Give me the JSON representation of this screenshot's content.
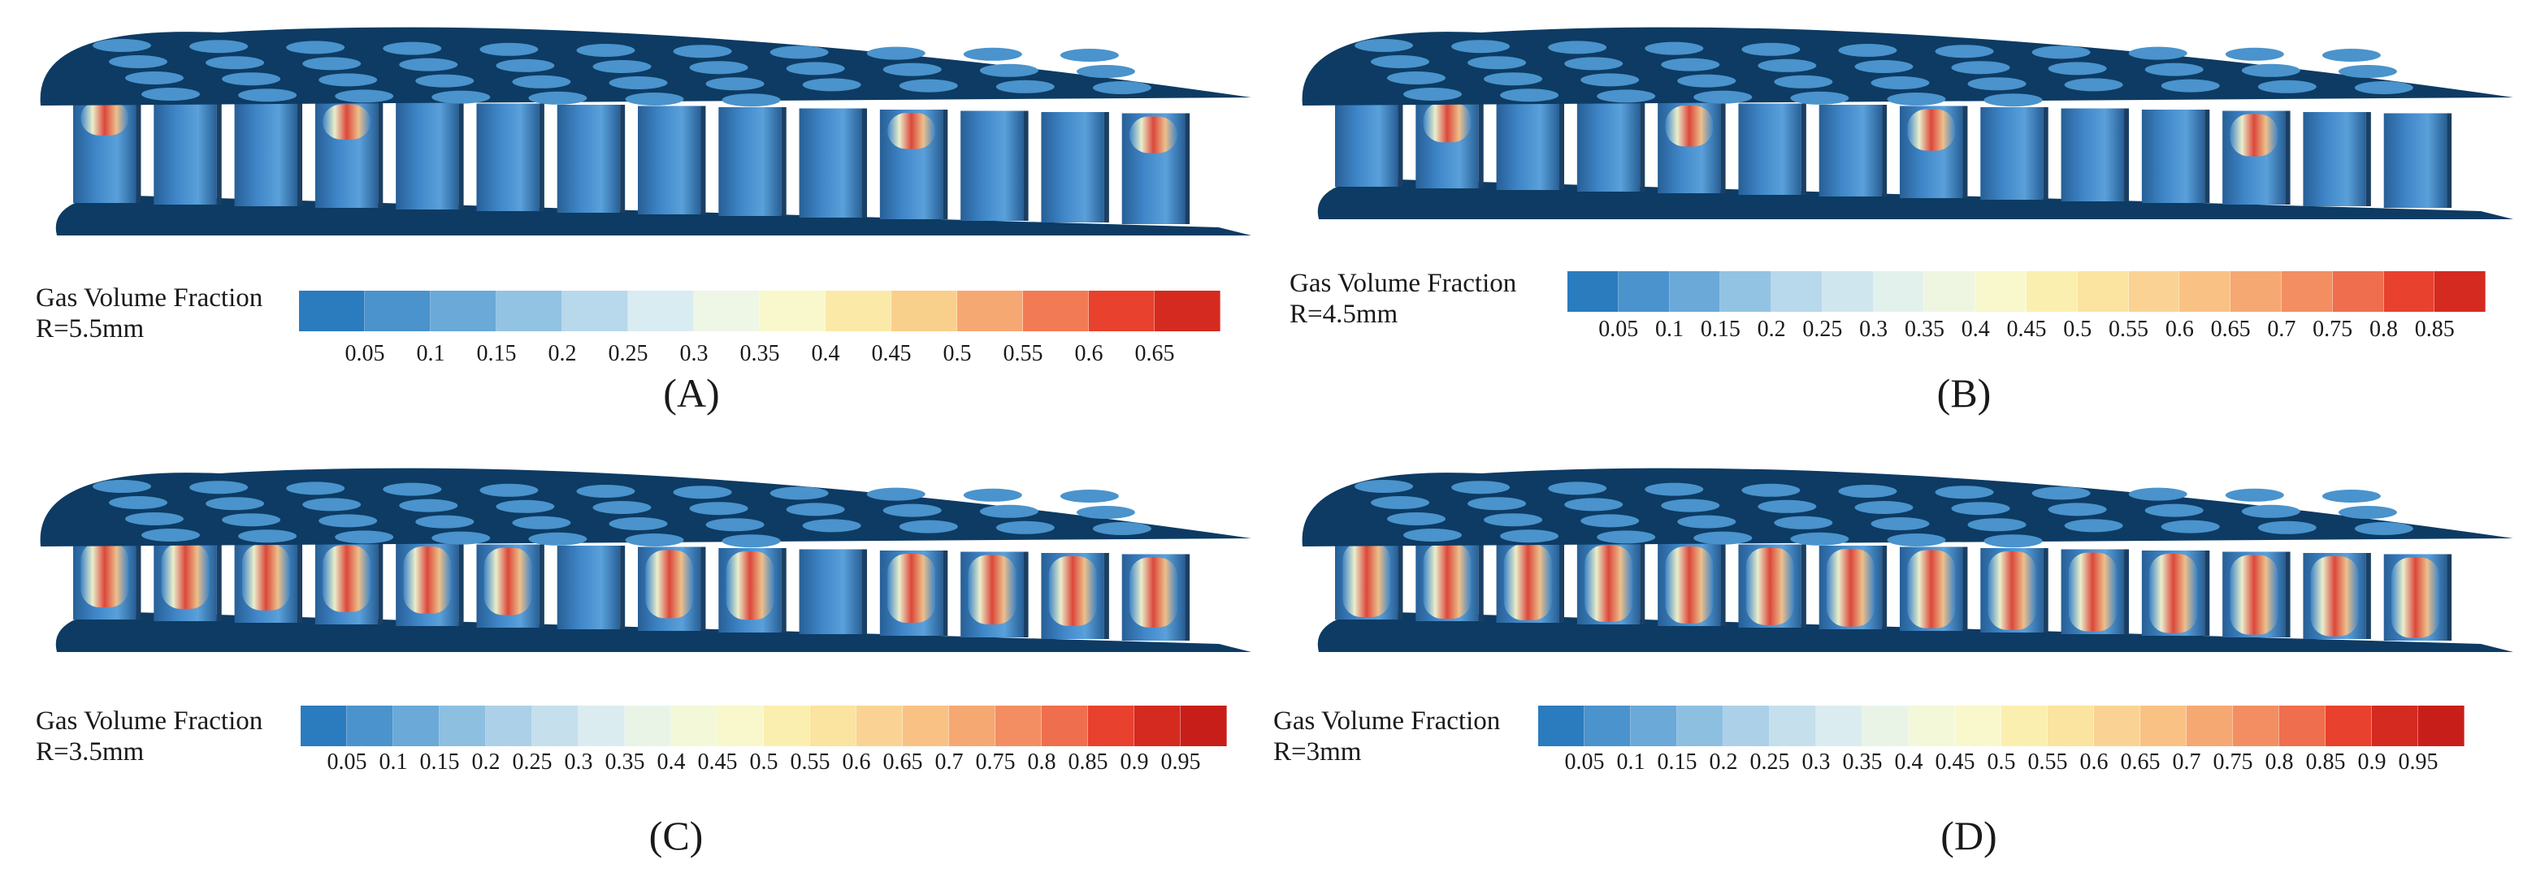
{
  "panels": [
    {
      "id": "A",
      "label": "(A)",
      "legend_title": "Gas Volume Fraction",
      "radius_label": "R=5.5mm",
      "ticks": [
        "0.05",
        "0.1",
        "0.15",
        "0.2",
        "0.25",
        "0.3",
        "0.35",
        "0.4",
        "0.45",
        "0.5",
        "0.55",
        "0.6",
        "0.65"
      ],
      "gas_level": 0.1,
      "colors": [
        "#2b7bbf",
        "#4a93cc",
        "#6aa9d8",
        "#93c3e3",
        "#b8d8ec",
        "#d9ecf1",
        "#eef6e6",
        "#f9f8cc",
        "#fbe9a8",
        "#f9cf8c",
        "#f6a873",
        "#f27a55",
        "#e8412d",
        "#d42a1f"
      ]
    },
    {
      "id": "B",
      "label": "(B)",
      "legend_title": "Gas Volume Fraction",
      "radius_label": "R=4.5mm",
      "ticks": [
        "0.05",
        "0.1",
        "0.15",
        "0.2",
        "0.25",
        "0.3",
        "0.35",
        "0.4",
        "0.45",
        "0.5",
        "0.55",
        "0.6",
        "0.65",
        "0.7",
        "0.75",
        "0.8",
        "0.85"
      ],
      "gas_level": 0.25,
      "colors": [
        "#2b7bbf",
        "#4a93cc",
        "#6aa9d8",
        "#93c3e3",
        "#b8d8ec",
        "#d0e6ef",
        "#e3f1ec",
        "#eef6e2",
        "#f9f8cc",
        "#fbefb0",
        "#fbe3a0",
        "#fad394",
        "#f9c284",
        "#f6a873",
        "#f38e62",
        "#ef6e4d",
        "#e8412d",
        "#d42a1f"
      ]
    },
    {
      "id": "C",
      "label": "(C)",
      "legend_title": "Gas Volume Fraction",
      "radius_label": "R=3.5mm",
      "ticks": [
        "0.05",
        "0.1",
        "0.15",
        "0.2",
        "0.25",
        "0.3",
        "0.35",
        "0.4",
        "0.45",
        "0.5",
        "0.55",
        "0.6",
        "0.65",
        "0.7",
        "0.75",
        "0.8",
        "0.85",
        "0.9",
        "0.95"
      ],
      "gas_level": 0.7,
      "colors": [
        "#2b7bbf",
        "#4a93cc",
        "#6aa9d8",
        "#8dbfe1",
        "#abd0e8",
        "#c5dfec",
        "#dbecf0",
        "#e9f4e7",
        "#f3f8d8",
        "#f9f8cc",
        "#fbefb0",
        "#fbe3a0",
        "#fad394",
        "#f9c284",
        "#f6a873",
        "#f38e62",
        "#ef6e4d",
        "#e8412d",
        "#d42a1f",
        "#c81e1a"
      ]
    },
    {
      "id": "D",
      "label": "(D)",
      "legend_title": "Gas Volume Fraction",
      "radius_label": "R=3mm",
      "ticks": [
        "0.05",
        "0.1",
        "0.15",
        "0.2",
        "0.25",
        "0.3",
        "0.35",
        "0.4",
        "0.45",
        "0.5",
        "0.55",
        "0.6",
        "0.65",
        "0.7",
        "0.75",
        "0.8",
        "0.85",
        "0.9",
        "0.95"
      ],
      "gas_level": 0.85,
      "colors": [
        "#2b7bbf",
        "#4a93cc",
        "#6aa9d8",
        "#8dbfe1",
        "#abd0e8",
        "#c5dfec",
        "#dbecf0",
        "#e9f4e7",
        "#f3f8d8",
        "#f9f8cc",
        "#fbefb0",
        "#fbe3a0",
        "#fad394",
        "#f9c284",
        "#f6a873",
        "#f38e62",
        "#ef6e4d",
        "#e8412d",
        "#d42a1f",
        "#c81e1a"
      ]
    }
  ],
  "colors": {
    "plate": "#0d3b63",
    "tube": "#3f86c8",
    "tube_dark": "#275f96",
    "gas_hot": "#e8412d",
    "gas_warm": "#f9c284",
    "gas_light": "#f9f8cc"
  }
}
